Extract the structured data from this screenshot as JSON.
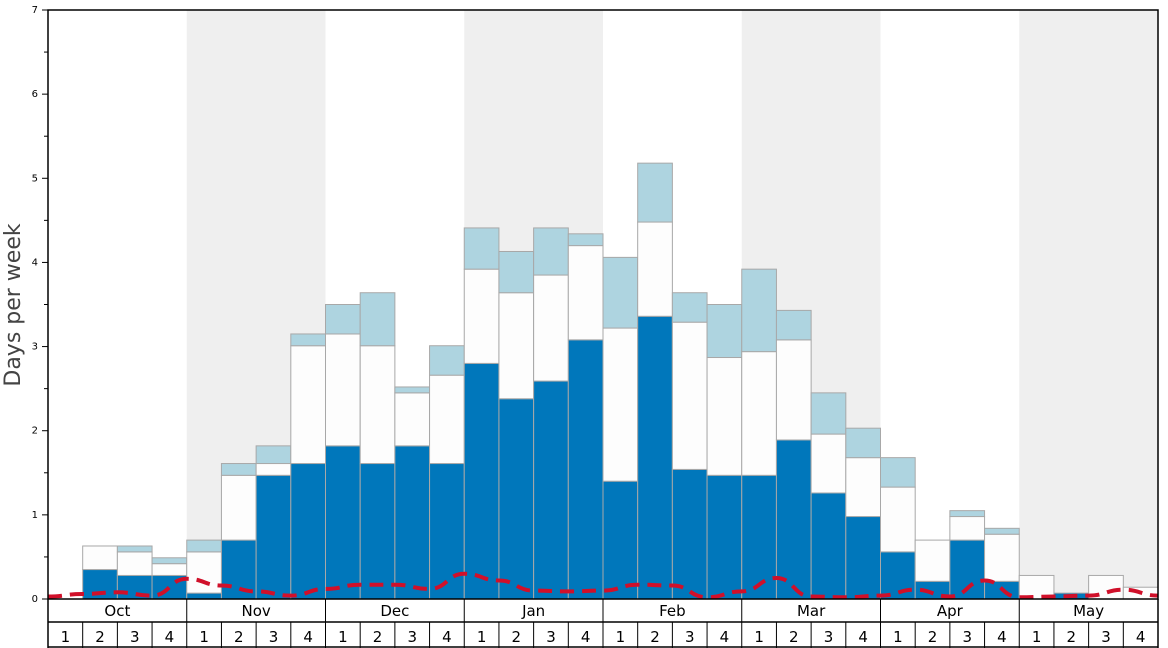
{
  "chart_data": {
    "type": "bar",
    "title": "",
    "xlabel": "",
    "ylabel": "Days per week",
    "ylim": [
      0,
      7
    ],
    "yticks": [
      "0",
      "1",
      "2",
      "3",
      "4",
      "5",
      "6",
      "7"
    ],
    "months": [
      "Oct",
      "Nov",
      "Dec",
      "Jan",
      "Feb",
      "Mar",
      "Apr",
      "May"
    ],
    "weeks": [
      "1",
      "2",
      "3",
      "4"
    ],
    "colors": {
      "series1": "#0077bb",
      "series2": "#fdfdfd",
      "series3": "#aed4e0",
      "line": "#d0102a",
      "shade": "#efefef",
      "bar_edge": "#a8a8a8"
    },
    "series": [
      {
        "name": "series1",
        "values": [
          0,
          0.35,
          0.28,
          0.28,
          0.07,
          0.7,
          1.47,
          1.61,
          1.82,
          1.61,
          1.82,
          1.61,
          2.8,
          2.38,
          2.59,
          3.08,
          1.4,
          3.36,
          1.54,
          1.47,
          1.47,
          1.89,
          1.26,
          0.98,
          0.56,
          0.21,
          0.7,
          0.21,
          0,
          0.07,
          0,
          0
        ]
      },
      {
        "name": "series2",
        "values": [
          0,
          0.28,
          0.28,
          0.14,
          0.49,
          0.77,
          0.14,
          1.4,
          1.33,
          1.4,
          0.63,
          1.05,
          1.12,
          1.26,
          1.26,
          1.12,
          1.82,
          1.12,
          1.75,
          1.4,
          1.47,
          1.19,
          0.7,
          0.7,
          0.77,
          0.49,
          0.28,
          0.56,
          0.28,
          0,
          0.28,
          0.14
        ]
      },
      {
        "name": "series3",
        "values": [
          0,
          0,
          0.07,
          0.07,
          0.14,
          0.14,
          0.21,
          0.14,
          0.35,
          0.63,
          0.07,
          0.35,
          0.49,
          0.49,
          0.56,
          0.14,
          0.84,
          0.7,
          0.35,
          0.63,
          0.98,
          0.35,
          0.49,
          0.35,
          0.35,
          0,
          0.07,
          0.07,
          0,
          0,
          0,
          0
        ]
      }
    ],
    "line": {
      "name": "dashed line",
      "values": [
        0.03,
        0.06,
        0.08,
        0.04,
        0.24,
        0.16,
        0.09,
        0.04,
        0.12,
        0.17,
        0.17,
        0.12,
        0.3,
        0.22,
        0.1,
        0.09,
        0.1,
        0.17,
        0.16,
        0.02,
        0.09,
        0.25,
        0.03,
        0.02,
        0.04,
        0.11,
        0.03,
        0.22,
        0.02,
        0.03,
        0.04,
        0.11,
        0.04
      ]
    }
  }
}
